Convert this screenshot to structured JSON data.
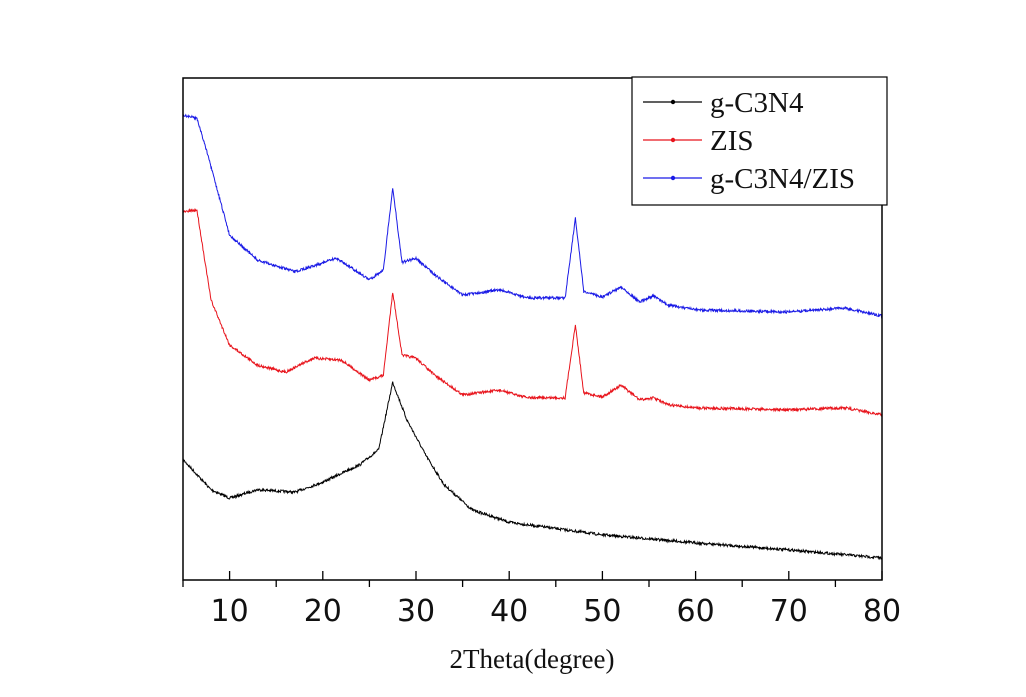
{
  "chart_data": {
    "type": "line",
    "title": "",
    "xlabel": "2Theta(degree)",
    "ylabel": "",
    "xlim": [
      5,
      80
    ],
    "ylim": [
      0,
      100
    ],
    "y_units": "arbitrary intensity (no y ticks shown)",
    "xticks": [
      "10",
      "20",
      "30",
      "40",
      "50",
      "60",
      "70",
      "80"
    ],
    "grid": false,
    "legend_position": "top-right",
    "series": [
      {
        "name": "g-C3N4",
        "color": "#000000",
        "x": [
          5,
          8,
          10,
          13,
          17,
          20,
          24,
          26,
          27.5,
          29,
          31,
          33,
          36,
          40,
          50,
          60,
          70,
          80
        ],
        "y": [
          24,
          18,
          16.3,
          18,
          17.5,
          19.5,
          23,
          26,
          39.4,
          32,
          25,
          19,
          14,
          11.5,
          9,
          7.4,
          6,
          4.4
        ]
      },
      {
        "name": "ZIS",
        "color": "#e8141c",
        "x": [
          5,
          6.5,
          7,
          8,
          10,
          13,
          16,
          19,
          22,
          25,
          26.5,
          27.5,
          28.5,
          30,
          32,
          35,
          39,
          42,
          46,
          47.1,
          48,
          50,
          52,
          54,
          55.5,
          57,
          60,
          70,
          76,
          80
        ],
        "y": [
          73.3,
          73.7,
          67.7,
          55.8,
          46.8,
          42.8,
          41.4,
          44.2,
          43.8,
          39.8,
          40.8,
          57.4,
          44.8,
          44.2,
          40.8,
          36.9,
          37.8,
          36.3,
          36.3,
          50.8,
          37.3,
          36.5,
          38.8,
          35.9,
          36.3,
          34.9,
          34.3,
          33.9,
          34.3,
          32.9
        ]
      },
      {
        "name": "g-C3N4/ZIS",
        "color": "#1a1ae6",
        "x": [
          5,
          6.5,
          7.5,
          10,
          13,
          17,
          21.5,
          25,
          26.5,
          27.5,
          28.5,
          30,
          32,
          35,
          39,
          42,
          46,
          47.1,
          48,
          50,
          52,
          54,
          55.5,
          57,
          60,
          70,
          76,
          80
        ],
        "y": [
          92.6,
          92,
          85.7,
          68.7,
          63.7,
          61.4,
          64.1,
          59.8,
          61.8,
          78.1,
          63.3,
          64.1,
          60.8,
          56.8,
          57.8,
          56.2,
          56.2,
          72.1,
          57.4,
          56.4,
          58.4,
          55.4,
          56.6,
          54.8,
          53.8,
          53.4,
          54.2,
          52.6
        ]
      }
    ]
  }
}
